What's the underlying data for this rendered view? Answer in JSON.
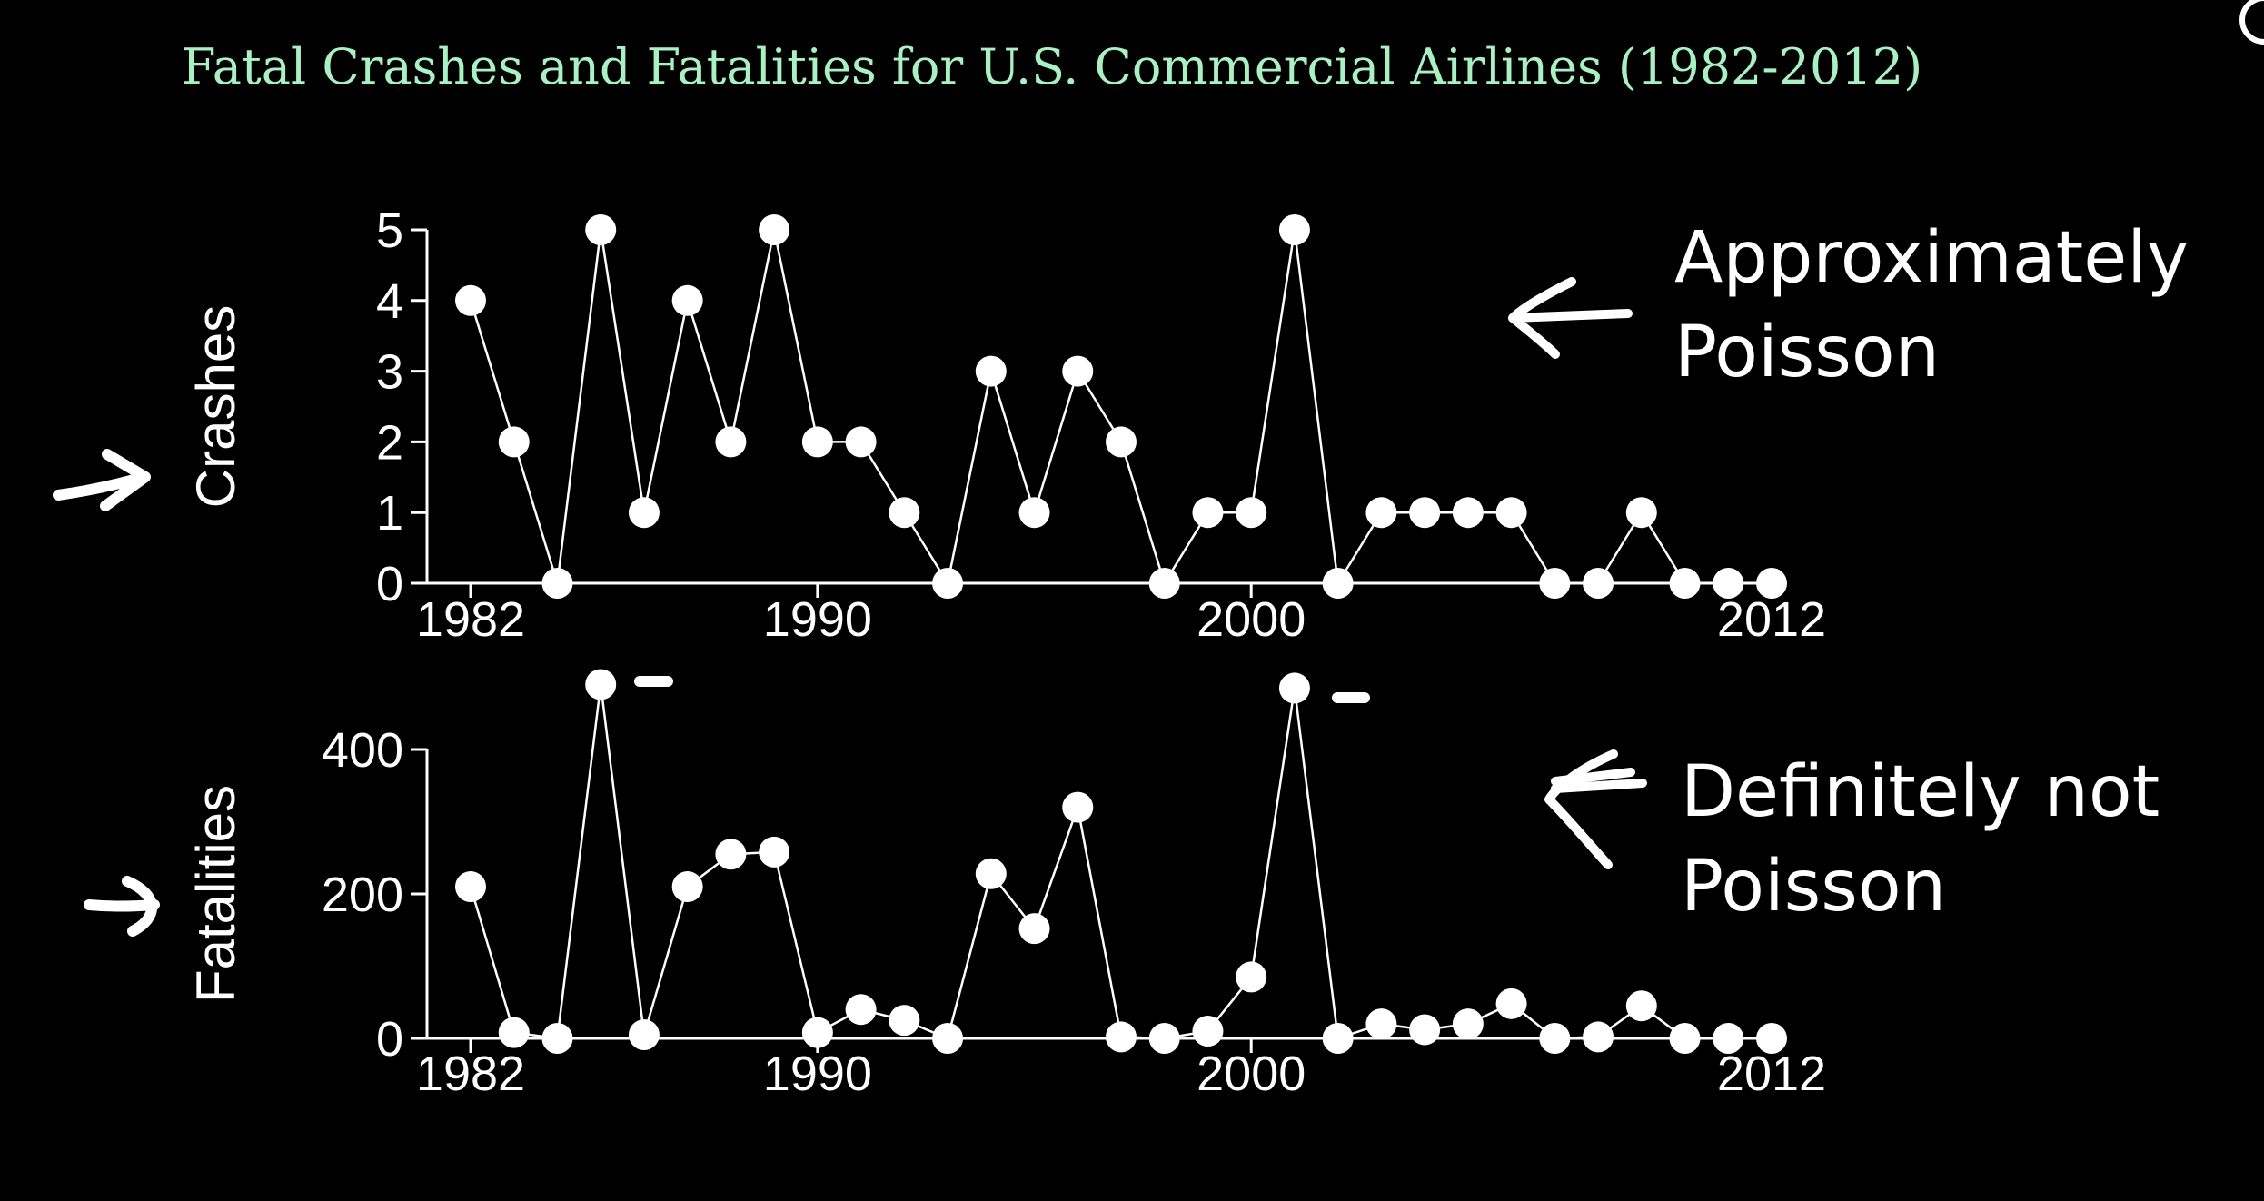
{
  "slide": {
    "title": "Fatal Crashes and Fatalities for U.S. Commercial Airlines (1982-2012)",
    "annotations": {
      "crashes_note": [
        "Approximately",
        "Poisson"
      ],
      "fatalities_note": [
        "Definitely not",
        "Poisson"
      ]
    },
    "colors": {
      "title": "#a9f0c2",
      "plot": "#ffffff",
      "background": "#000000"
    }
  },
  "chart_data": [
    {
      "type": "line",
      "markers": true,
      "title": "",
      "xlabel": "",
      "ylabel": "Crashes",
      "x": [
        1982,
        1983,
        1984,
        1985,
        1986,
        1987,
        1988,
        1989,
        1990,
        1991,
        1992,
        1993,
        1994,
        1995,
        1996,
        1997,
        1998,
        1999,
        2000,
        2001,
        2002,
        2003,
        2004,
        2005,
        2006,
        2007,
        2008,
        2009,
        2010,
        2011,
        2012
      ],
      "series": [
        {
          "values": [
            4,
            2,
            0,
            5,
            1,
            4,
            2,
            5,
            2,
            2,
            1,
            0,
            3,
            1,
            3,
            2,
            0,
            1,
            1,
            5,
            0,
            1,
            1,
            1,
            1,
            0,
            0,
            1,
            0,
            0,
            0
          ]
        }
      ],
      "xticks": [
        "1982",
        "1990",
        "2000",
        "2012"
      ],
      "yticks": [
        "0",
        "1",
        "2",
        "3",
        "4",
        "5"
      ],
      "xlim": [
        1982,
        2012
      ],
      "ylim": [
        0,
        5
      ],
      "grid": false
    },
    {
      "type": "line",
      "markers": true,
      "title": "",
      "xlabel": "",
      "ylabel": "Fatalities",
      "x": [
        1982,
        1983,
        1984,
        1985,
        1986,
        1987,
        1988,
        1989,
        1990,
        1991,
        1992,
        1993,
        1994,
        1995,
        1996,
        1997,
        1998,
        1999,
        2000,
        2001,
        2002,
        2003,
        2004,
        2005,
        2006,
        2007,
        2008,
        2009,
        2010,
        2011,
        2012
      ],
      "series": [
        {
          "values": [
            210,
            8,
            0,
            490,
            5,
            210,
            255,
            258,
            8,
            40,
            25,
            0,
            228,
            152,
            320,
            2,
            0,
            10,
            85,
            485,
            0,
            20,
            12,
            20,
            48,
            0,
            2,
            45,
            0,
            0,
            0
          ]
        }
      ],
      "xticks": [
        "1982",
        "1990",
        "2000",
        "2012"
      ],
      "yticks": [
        "0",
        "200",
        "400"
      ],
      "xlim": [
        1982,
        2012
      ],
      "ylim": [
        0,
        400
      ],
      "grid": false
    }
  ]
}
